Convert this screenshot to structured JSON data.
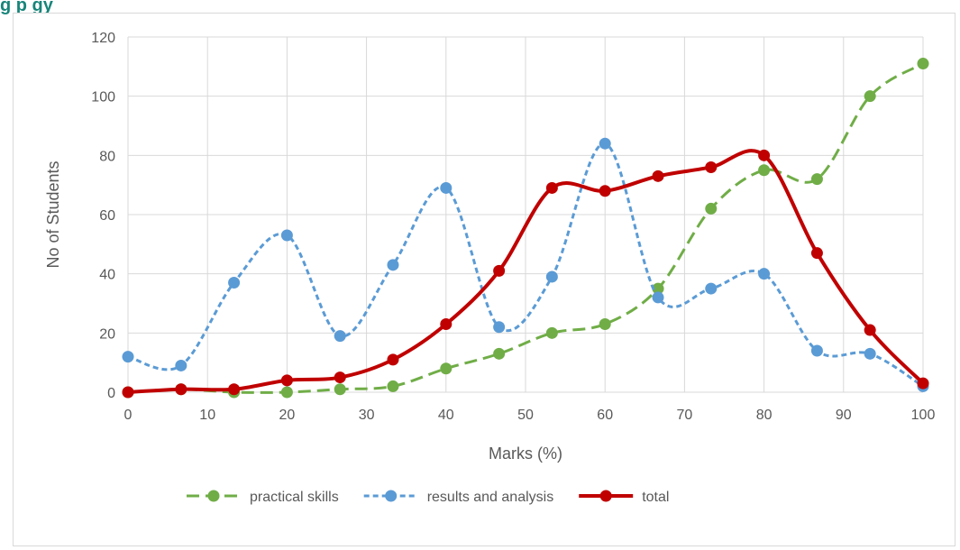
{
  "header": {
    "visible_text": "g                                                        p                                                                                              gy"
  },
  "chart_data": {
    "type": "line",
    "title": "",
    "xlabel": "Marks (%)",
    "ylabel": "No of Students",
    "xlim": [
      0,
      100
    ],
    "ylim": [
      0,
      120
    ],
    "x_ticks": [
      0,
      10,
      20,
      30,
      40,
      50,
      60,
      70,
      80,
      90,
      100
    ],
    "y_ticks": [
      0,
      20,
      40,
      60,
      80,
      100,
      120
    ],
    "grid": "both",
    "legend_position": "bottom",
    "x": [
      0,
      6.67,
      13.33,
      20,
      26.67,
      33.33,
      40,
      46.67,
      53.33,
      60,
      66.67,
      73.33,
      80,
      86.67,
      93.33,
      100
    ],
    "series": [
      {
        "name": "practical skills",
        "color": "#70ad47",
        "dash": "dashed",
        "smooth": true,
        "values": [
          0,
          1,
          0,
          0,
          1,
          2,
          8,
          13,
          20,
          23,
          35,
          62,
          75,
          72,
          100,
          111
        ]
      },
      {
        "name": "results and analysis",
        "color": "#5b9bd5",
        "dash": "dotted",
        "smooth": true,
        "values": [
          12,
          9,
          37,
          53,
          19,
          43,
          69,
          22,
          39,
          84,
          32,
          35,
          40,
          14,
          13,
          2
        ]
      },
      {
        "name": "total",
        "color": "#c00000",
        "dash": "solid",
        "smooth": true,
        "values": [
          0,
          1,
          1,
          4,
          5,
          11,
          23,
          41,
          69,
          68,
          73,
          76,
          80,
          47,
          21,
          3
        ]
      }
    ]
  }
}
